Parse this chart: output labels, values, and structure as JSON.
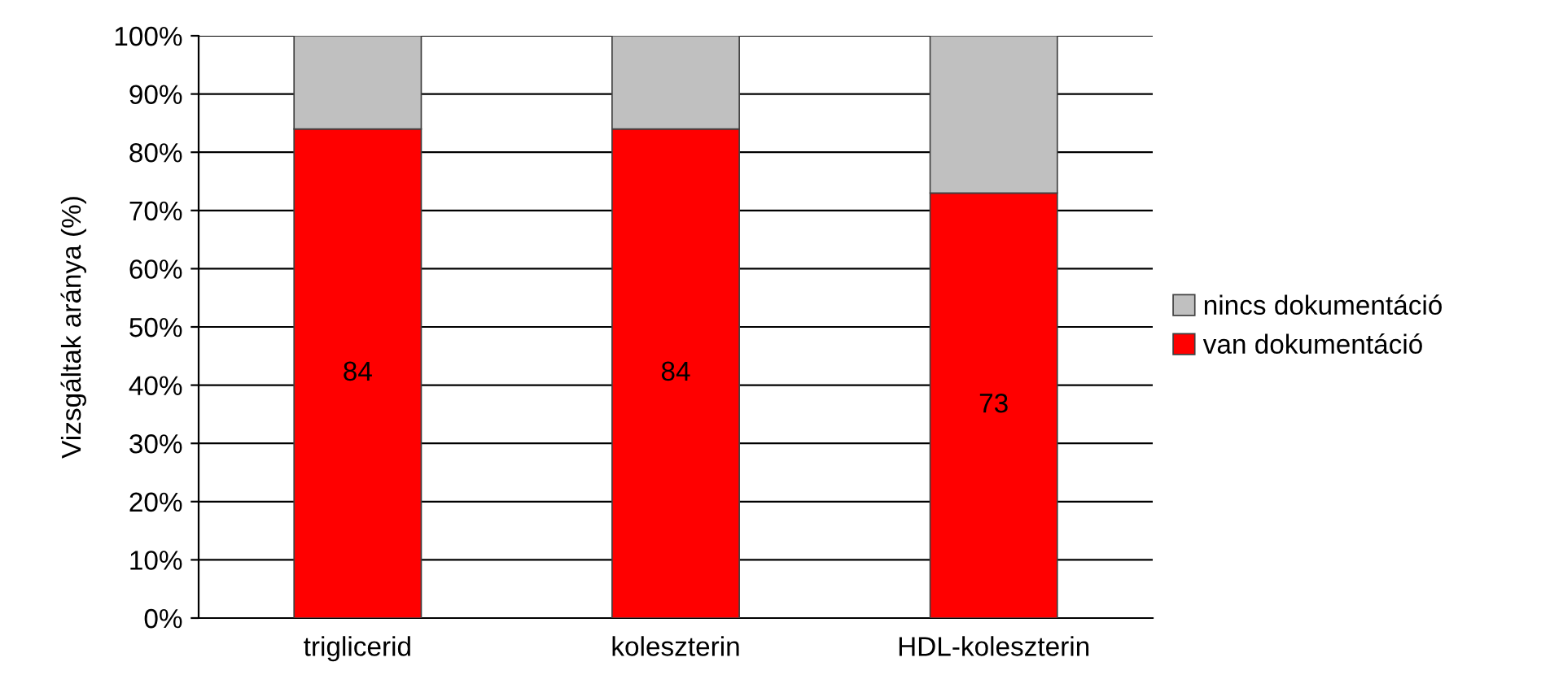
{
  "chart_data": {
    "type": "bar",
    "stacked": true,
    "ylabel": "Vizsgáltak aránya (%)",
    "categories": [
      "triglicerid",
      "koleszterin",
      "HDL-koleszterin"
    ],
    "series": [
      {
        "name": "van dokumentáció",
        "color": "#ff0000",
        "values": [
          84,
          84,
          73
        ],
        "value_labels": [
          "84",
          "84",
          "73"
        ]
      },
      {
        "name": "nincs dokumentáció",
        "color": "#c0c0c0",
        "values": [
          16,
          16,
          27
        ]
      }
    ],
    "ylim": [
      0,
      100
    ],
    "yticks": [
      {
        "value": 0,
        "label": "0%"
      },
      {
        "value": 10,
        "label": "10%"
      },
      {
        "value": 20,
        "label": "20%"
      },
      {
        "value": 30,
        "label": "30%"
      },
      {
        "value": 40,
        "label": "40%"
      },
      {
        "value": 50,
        "label": "50%"
      },
      {
        "value": 60,
        "label": "60%"
      },
      {
        "value": 70,
        "label": "70%"
      },
      {
        "value": 80,
        "label": "80%"
      },
      {
        "value": 90,
        "label": "90%"
      },
      {
        "value": 100,
        "label": "100%"
      }
    ],
    "grid": "y",
    "legend": "right"
  }
}
